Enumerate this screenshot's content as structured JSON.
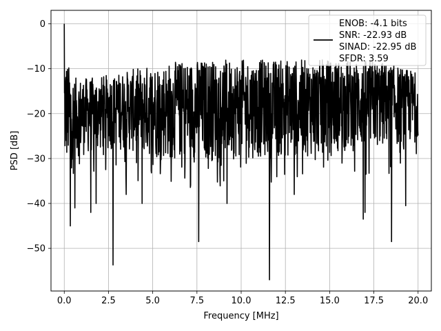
{
  "chart_data": {
    "type": "line",
    "title": "",
    "xlabel": "Frequency [MHz]",
    "ylabel": "PSD [dB]",
    "xlim": [
      -0.75,
      20.75
    ],
    "ylim": [
      -59.5,
      3
    ],
    "xticks": [
      0.0,
      2.5,
      5.0,
      7.5,
      10.0,
      12.5,
      15.0,
      17.5,
      20.0
    ],
    "xtick_labels": [
      "0.0",
      "2.5",
      "5.0",
      "7.5",
      "10.0",
      "12.5",
      "15.0",
      "17.5",
      "20.0"
    ],
    "yticks": [
      0,
      -10,
      -20,
      -30,
      -40,
      -50
    ],
    "ytick_labels": [
      "0",
      "−10",
      "−20",
      "−30",
      "−40",
      "−50"
    ],
    "grid": true,
    "legend_position": "top-right",
    "series": [
      {
        "color": "#000000",
        "band_low": [
          [
            0.05,
            -33
          ],
          [
            0.5,
            -30
          ],
          [
            1.5,
            -29
          ],
          [
            3,
            -28
          ],
          [
            5,
            -30
          ],
          [
            7.5,
            -31
          ],
          [
            10,
            -30
          ],
          [
            12.5,
            -30
          ],
          [
            15,
            -29
          ],
          [
            17.5,
            -28
          ],
          [
            19.5,
            -27
          ],
          [
            20,
            -25
          ]
        ],
        "band_high": [
          [
            0.05,
            -7
          ],
          [
            0.5,
            -12
          ],
          [
            1.5,
            -12
          ],
          [
            3,
            -11
          ],
          [
            5,
            -9
          ],
          [
            7.5,
            -8
          ],
          [
            10,
            -8
          ],
          [
            12.5,
            -8
          ],
          [
            15,
            -8
          ],
          [
            17.5,
            -8
          ],
          [
            19.5,
            -10
          ],
          [
            20,
            -11
          ]
        ],
        "dips": [
          [
            0.0,
            0.0
          ],
          [
            0.35,
            -45
          ],
          [
            0.6,
            -41
          ],
          [
            1.5,
            -42
          ],
          [
            1.8,
            -40
          ],
          [
            2.75,
            -53.7
          ],
          [
            3.5,
            -38
          ],
          [
            4.4,
            -40
          ],
          [
            7.6,
            -48.5
          ],
          [
            9.2,
            -40
          ],
          [
            11.6,
            -57
          ],
          [
            13,
            -38
          ],
          [
            16.9,
            -43.5
          ],
          [
            17,
            -42
          ],
          [
            18.5,
            -48.5
          ],
          [
            19.3,
            -40.5
          ]
        ]
      }
    ],
    "legend": {
      "lines": [
        "ENOB: -4.1 bits",
        "SNR: -22.93 dB",
        "SINAD: -22.95 dB",
        "SFDR: 3.59"
      ]
    }
  }
}
